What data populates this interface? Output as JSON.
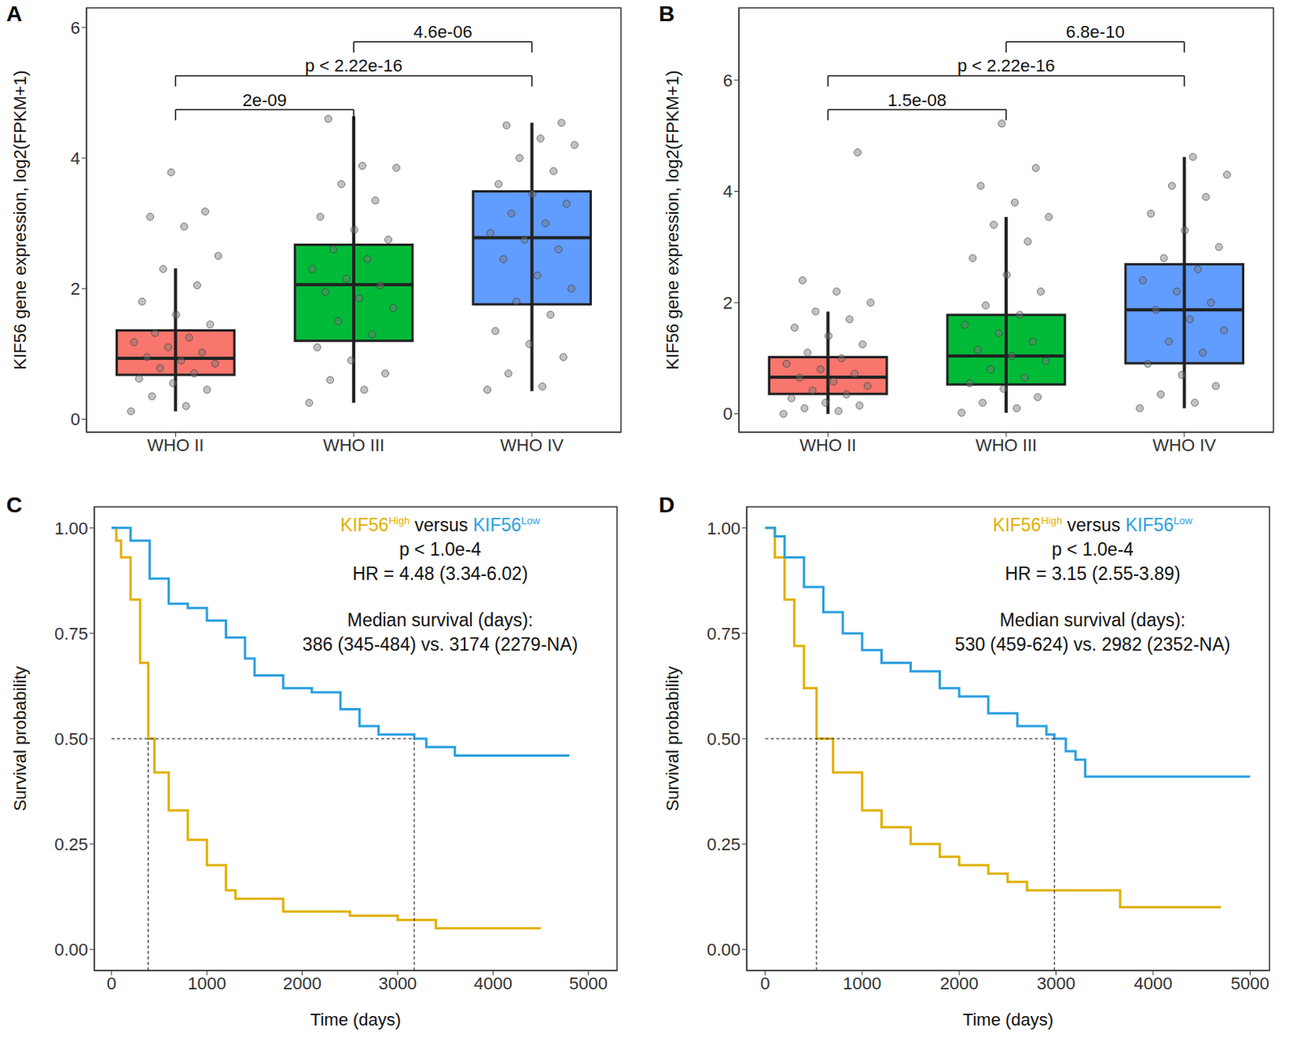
{
  "chart_data": [
    {
      "label": "A",
      "type": "box",
      "y_label": "KIF56 gene expression, log2(FPKM+1)",
      "categories": [
        "WHO II",
        "WHO III",
        "WHO IV"
      ],
      "colors": [
        "#F8766D",
        "#00BA38",
        "#619CFF"
      ],
      "ylim": [
        -0.2,
        6.3
      ],
      "yticks": [
        0,
        2,
        4,
        6
      ],
      "boxes": [
        {
          "low": 0.12,
          "q1": 0.68,
          "median": 0.93,
          "q3": 1.36,
          "high": 2.31
        },
        {
          "low": 0.25,
          "q1": 1.2,
          "median": 2.06,
          "q3": 2.67,
          "high": 4.64
        },
        {
          "low": 0.43,
          "q1": 1.76,
          "median": 2.78,
          "q3": 3.49,
          "high": 4.54
        }
      ],
      "points": [
        [
          0.12,
          0.2,
          0.35,
          0.45,
          0.55,
          0.62,
          0.7,
          0.78,
          0.85,
          0.9,
          0.95,
          1.02,
          1.1,
          1.18,
          1.25,
          1.32,
          1.45,
          1.6,
          1.8,
          2.05,
          2.3,
          2.5,
          2.95,
          3.1,
          3.18,
          3.78
        ],
        [
          0.25,
          0.45,
          0.6,
          0.7,
          0.9,
          1.1,
          1.3,
          1.5,
          1.7,
          1.85,
          1.95,
          2.05,
          2.15,
          2.3,
          2.45,
          2.6,
          2.75,
          2.9,
          3.1,
          3.35,
          3.6,
          3.85,
          3.88,
          4.6
        ],
        [
          0.45,
          0.5,
          0.7,
          0.95,
          1.15,
          1.35,
          1.6,
          1.8,
          2.0,
          2.2,
          2.45,
          2.6,
          2.75,
          2.85,
          3.0,
          3.15,
          3.3,
          3.45,
          3.6,
          3.8,
          4.0,
          4.2,
          4.3,
          4.5,
          4.54
        ]
      ],
      "comparisons": [
        {
          "groups": [
            0,
            1
          ],
          "label": "2e-09"
        },
        {
          "groups": [
            0,
            2
          ],
          "label": "p < 2.22e-16"
        },
        {
          "groups": [
            1,
            2
          ],
          "label": "4.6e-06"
        }
      ]
    },
    {
      "label": "B",
      "type": "box",
      "y_label": "KIF56 gene expression, log2(FPKM+1)",
      "categories": [
        "WHO II",
        "WHO III",
        "WHO IV"
      ],
      "colors": [
        "#F8766D",
        "#00BA38",
        "#619CFF"
      ],
      "ylim": [
        -0.33,
        7.3
      ],
      "yticks": [
        0,
        2,
        4,
        6
      ],
      "boxes": [
        {
          "low": 0.0,
          "q1": 0.36,
          "median": 0.66,
          "q3": 1.02,
          "high": 1.84
        },
        {
          "low": 0.02,
          "q1": 0.53,
          "median": 1.04,
          "q3": 1.78,
          "high": 3.54
        },
        {
          "low": 0.1,
          "q1": 0.91,
          "median": 1.87,
          "q3": 2.69,
          "high": 4.62
        }
      ],
      "points": [
        [
          0.0,
          0.05,
          0.1,
          0.15,
          0.2,
          0.28,
          0.35,
          0.42,
          0.5,
          0.58,
          0.65,
          0.72,
          0.8,
          0.9,
          1.0,
          1.1,
          1.25,
          1.4,
          1.55,
          1.7,
          1.84,
          2.0,
          2.2,
          2.4,
          4.7
        ],
        [
          0.02,
          0.1,
          0.2,
          0.3,
          0.45,
          0.55,
          0.65,
          0.8,
          0.95,
          1.04,
          1.15,
          1.3,
          1.45,
          1.6,
          1.78,
          1.95,
          2.2,
          2.5,
          2.8,
          3.1,
          3.4,
          3.54,
          3.8,
          4.1,
          4.42,
          5.22
        ],
        [
          0.1,
          0.2,
          0.35,
          0.5,
          0.7,
          0.9,
          1.1,
          1.3,
          1.5,
          1.7,
          1.87,
          2.0,
          2.2,
          2.4,
          2.6,
          2.8,
          3.0,
          3.3,
          3.6,
          3.9,
          4.1,
          4.3,
          4.62
        ]
      ],
      "comparisons": [
        {
          "groups": [
            0,
            1
          ],
          "label": "1.5e-08"
        },
        {
          "groups": [
            0,
            2
          ],
          "label": "p < 2.22e-16"
        },
        {
          "groups": [
            1,
            2
          ],
          "label": "6.8e-10"
        }
      ]
    },
    {
      "label": "C",
      "type": "line",
      "line_style": "step",
      "x_label": "Time (days)",
      "y_label": "Survival probability",
      "xlim": [
        -180,
        5300
      ],
      "xticks": [
        0,
        1000,
        2000,
        3000,
        4000,
        5000
      ],
      "ylim": [
        -0.05,
        1.05
      ],
      "yticks": [
        {
          "value": 0,
          "label": "0.00"
        },
        {
          "value": 0.25,
          "label": "0.25"
        },
        {
          "value": 0.5,
          "label": "0.50"
        },
        {
          "value": 0.75,
          "label": "0.75"
        },
        {
          "value": 1,
          "label": "1.00"
        }
      ],
      "series": [
        {
          "name": "KIF56",
          "superscript": "High",
          "color": "#E0B000",
          "x": [
            0,
            50,
            100,
            200,
            300,
            386,
            450,
            600,
            800,
            1000,
            1200,
            1300,
            1600,
            1800,
            2500,
            3000,
            3400,
            4500
          ],
          "values": [
            1,
            0.97,
            0.93,
            0.83,
            0.68,
            0.5,
            0.42,
            0.33,
            0.26,
            0.2,
            0.14,
            0.12,
            0.12,
            0.09,
            0.08,
            0.07,
            0.05,
            0.05
          ]
        },
        {
          "name": "KIF56",
          "superscript": "Low",
          "color": "#2B9FE0",
          "x": [
            0,
            100,
            200,
            400,
            600,
            800,
            1000,
            1200,
            1400,
            1500,
            1800,
            2100,
            2400,
            2600,
            2800,
            3174,
            3300,
            3600,
            4800
          ],
          "values": [
            1,
            1,
            0.97,
            0.88,
            0.82,
            0.81,
            0.78,
            0.74,
            0.69,
            0.65,
            0.62,
            0.61,
            0.57,
            0.53,
            0.51,
            0.5,
            0.48,
            0.46,
            0.46
          ]
        }
      ],
      "comparison_word": "versus",
      "annotations": [
        "p < 1.0e-4",
        "HR = 4.48 (3.34-6.02)",
        "Median survival (days):",
        "386 (345-484) vs. 3174 (2279-NA)"
      ],
      "median_level": 0.5,
      "medians": [
        386,
        3174
      ]
    },
    {
      "label": "D",
      "type": "line",
      "line_style": "step",
      "x_label": "Time (days)",
      "y_label": "Survival probability",
      "xlim": [
        -190,
        5200
      ],
      "xticks": [
        0,
        1000,
        2000,
        3000,
        4000,
        5000
      ],
      "ylim": [
        -0.05,
        1.05
      ],
      "yticks": [
        {
          "value": 0,
          "label": "0.00"
        },
        {
          "value": 0.25,
          "label": "0.25"
        },
        {
          "value": 0.5,
          "label": "0.50"
        },
        {
          "value": 0.75,
          "label": "0.75"
        },
        {
          "value": 1,
          "label": "1.00"
        }
      ],
      "series": [
        {
          "name": "KIF56",
          "superscript": "High",
          "color": "#E0B000",
          "x": [
            0,
            100,
            200,
            300,
            400,
            530,
            700,
            1000,
            1200,
            1500,
            1800,
            2000,
            2300,
            2500,
            2700,
            3000,
            3650,
            3660,
            4700
          ],
          "values": [
            1,
            0.93,
            0.83,
            0.72,
            0.62,
            0.5,
            0.42,
            0.33,
            0.29,
            0.25,
            0.22,
            0.2,
            0.18,
            0.16,
            0.14,
            0.14,
            0.14,
            0.1,
            0.1
          ]
        },
        {
          "name": "KIF56",
          "superscript": "Low",
          "color": "#2B9FE0",
          "x": [
            0,
            100,
            200,
            400,
            600,
            800,
            1000,
            1200,
            1500,
            1800,
            2000,
            2300,
            2600,
            2900,
            2982,
            3100,
            3200,
            3300,
            5000
          ],
          "values": [
            1,
            0.98,
            0.93,
            0.86,
            0.8,
            0.75,
            0.71,
            0.68,
            0.66,
            0.62,
            0.6,
            0.56,
            0.53,
            0.51,
            0.5,
            0.47,
            0.45,
            0.41,
            0.41
          ]
        }
      ],
      "comparison_word": "versus",
      "annotations": [
        "p < 1.0e-4",
        "HR = 3.15 (2.55-3.89)",
        "Median survival (days):",
        "530 (459-624) vs. 2982 (2352-NA)"
      ],
      "median_level": 0.5,
      "medians": [
        530,
        2982
      ]
    }
  ]
}
